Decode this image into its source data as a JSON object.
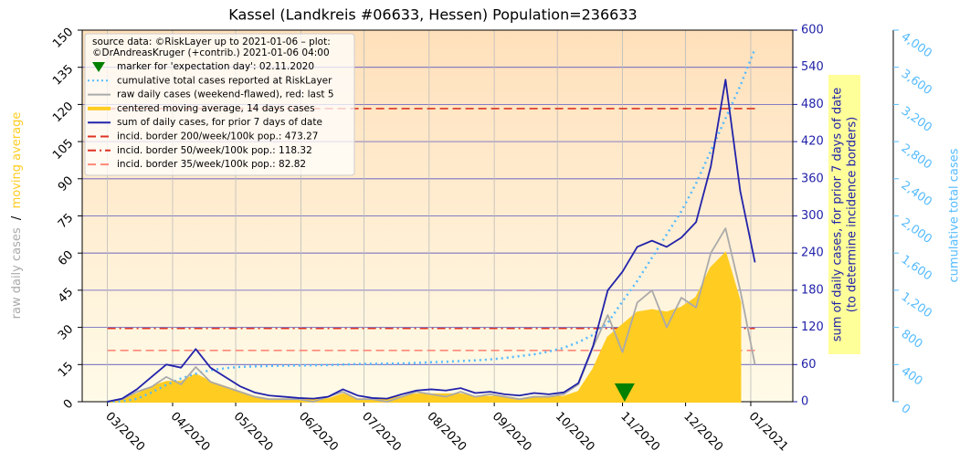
{
  "chart_data": {
    "type": "line",
    "title": "Kassel (Landkreis #06633, Hessen) Population=236633",
    "source": [
      "source data: ©RiskLayer up to 2021-01-06 – plot:",
      "©DrAndreasKruger (+contrib.) 2021-01-06 04:00"
    ],
    "ylabel": [
      {
        "text": "raw daily cases",
        "color": "#aaaaaa"
      },
      {
        "text": "/",
        "color": "#000000"
      },
      {
        "text": "moving average",
        "color": "#ffcc22"
      }
    ],
    "y2label": [
      "sum of daily cases, for prior 7 days of date",
      "(to determine incidence borders)"
    ],
    "y3label": "cumulative total cases",
    "x": [
      0,
      7,
      14,
      21,
      28,
      35,
      42,
      49,
      56,
      63,
      70,
      77,
      84,
      91,
      98,
      105,
      112,
      119,
      126,
      133,
      140,
      147,
      154,
      161,
      168,
      175,
      182,
      189,
      196,
      203,
      210,
      217,
      224,
      231,
      238,
      245,
      252,
      259,
      266,
      273,
      280,
      287,
      294,
      301,
      308
    ],
    "xlim": [
      -12,
      326
    ],
    "xticks": [
      {
        "value": 0,
        "label": "03/2020"
      },
      {
        "value": 31,
        "label": "04/2020"
      },
      {
        "value": 61,
        "label": "05/2020"
      },
      {
        "value": 92,
        "label": "06/2020"
      },
      {
        "value": 122,
        "label": "07/2020"
      },
      {
        "value": 153,
        "label": "08/2020"
      },
      {
        "value": 184,
        "label": "09/2020"
      },
      {
        "value": 214,
        "label": "10/2020"
      },
      {
        "value": 245,
        "label": "11/2020"
      },
      {
        "value": 275,
        "label": "12/2020"
      },
      {
        "value": 306,
        "label": "01/2021"
      }
    ],
    "ylim": [
      0,
      150
    ],
    "yticks": [
      0,
      15,
      30,
      45,
      60,
      75,
      90,
      105,
      120,
      135,
      150
    ],
    "y2lim": [
      0,
      600
    ],
    "y2ticks": [
      0,
      60,
      120,
      180,
      240,
      300,
      360,
      420,
      480,
      540,
      600
    ],
    "y3lim": [
      0,
      4000
    ],
    "y3ticks": [
      0,
      400,
      800,
      {
        "value": 1200,
        "label": "1,200"
      },
      {
        "value": 1600,
        "label": "1,600"
      },
      {
        "value": 2000,
        "label": "2,000"
      },
      {
        "value": 2400,
        "label": "2,400"
      },
      {
        "value": 2800,
        "label": "2,800"
      },
      {
        "value": 3200,
        "label": "3,200"
      },
      {
        "value": 3600,
        "label": "3,600"
      },
      {
        "value": 4000,
        "label": "4,000"
      }
    ],
    "grid": true,
    "marker": {
      "name": "marker for 'expectation day': 02.11.2020",
      "x": 246,
      "y": 0,
      "color": "#008000"
    },
    "series": [
      {
        "name": "cumulative total cases reported at RiskLayer",
        "color": "#55bbff",
        "style": "dotted",
        "axis": "y3",
        "values": [
          0,
          5,
          30,
          100,
          180,
          250,
          300,
          340,
          360,
          375,
          380,
          385,
          388,
          390,
          392,
          395,
          400,
          405,
          408,
          410,
          412,
          418,
          425,
          430,
          438,
          445,
          455,
          470,
          490,
          510,
          540,
          580,
          640,
          720,
          850,
          1080,
          1300,
          1550,
          1800,
          2050,
          2350,
          2700,
          3050,
          3400,
          3800
        ]
      },
      {
        "name": "raw daily cases (weekend-flawed), red: last 5",
        "color": "#aaaaaa",
        "style": "line",
        "axis": "y",
        "values": [
          0,
          1,
          4,
          6,
          10,
          7,
          14,
          8,
          6,
          4,
          2,
          1,
          1,
          1,
          0,
          2,
          4,
          1,
          1,
          0,
          2,
          4,
          3,
          2,
          4,
          2,
          3,
          2,
          1,
          2,
          2,
          3,
          7,
          22,
          35,
          20,
          40,
          45,
          30,
          42,
          38,
          60,
          70,
          45,
          15
        ]
      },
      {
        "name": "centered moving average, 14 days cases",
        "color": "#ffcc22",
        "style": "area",
        "axis": "y",
        "values": [
          0,
          1,
          3,
          6,
          8,
          8,
          11,
          8,
          6,
          4,
          2,
          1,
          1,
          1,
          1,
          1,
          3,
          1,
          1,
          1,
          2,
          3,
          3,
          3,
          3,
          2,
          2,
          2,
          1,
          2,
          2,
          2,
          4,
          13,
          26,
          31,
          36,
          37,
          36,
          38,
          42,
          54,
          60,
          40,
          null
        ]
      },
      {
        "name": "sum of daily cases, for prior 7 days of date",
        "color": "#2222aa",
        "style": "line",
        "axis": "y2",
        "values": [
          0,
          5,
          20,
          40,
          60,
          55,
          85,
          55,
          40,
          25,
          15,
          10,
          8,
          6,
          5,
          8,
          20,
          10,
          6,
          5,
          12,
          18,
          20,
          18,
          22,
          14,
          16,
          12,
          10,
          14,
          12,
          15,
          30,
          90,
          180,
          210,
          250,
          260,
          250,
          265,
          290,
          380,
          520,
          340,
          225
        ]
      }
    ],
    "hlines": [
      {
        "name": "incid. border 200/week/100k pop.: 473.27",
        "value": 473.27,
        "color": "#dd3322",
        "style": "dashed"
      },
      {
        "name": "incid. border 50/week/100k pop.: 118.32",
        "value": 118.32,
        "color": "#dd3322",
        "style": "dashdot"
      },
      {
        "name": "incid. border 35/week/100k pop.: 82.82",
        "value": 82.82,
        "color": "#ff8877",
        "style": "dashed"
      }
    ]
  }
}
